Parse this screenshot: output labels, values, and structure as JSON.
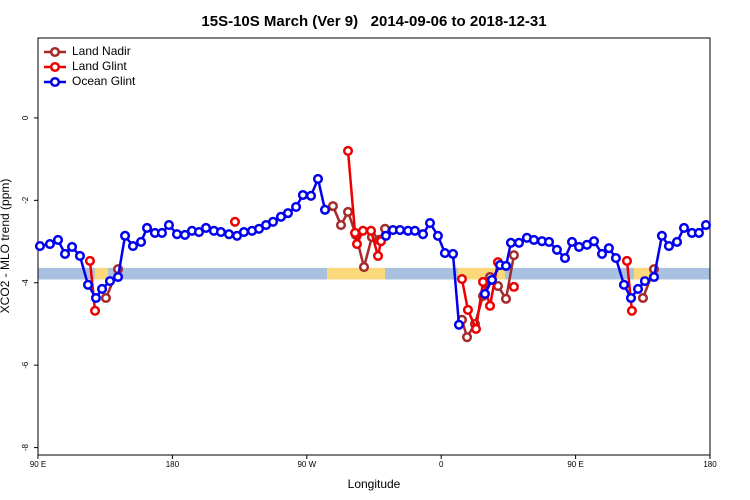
{
  "chart_data": {
    "type": "line",
    "title": "15S-10S March (Ver 9)   2014-09-06 to 2018-12-31",
    "xlabel": "Longitude",
    "ylabel": "XCO2 - MLO trend (ppm)",
    "xlim": [
      90,
      540
    ],
    "ylim": [
      -8.18,
      1.94
    ],
    "xticks": [
      {
        "value": 90,
        "label": "90 E"
      },
      180,
      {
        "value": 270,
        "label": "90 W"
      },
      {
        "value": 360,
        "label": "0"
      },
      {
        "value": 450,
        "label": "90 E"
      },
      {
        "value": 540,
        "label": "180"
      }
    ],
    "yticks": [
      0,
      -2,
      -4,
      -6,
      -8
    ],
    "legend": "top-left",
    "band": {
      "ylim": [
        -3.92,
        -3.64
      ],
      "color": "#a9c1e0"
    },
    "land_spans": {
      "color": "#fbd97a",
      "ranges": [
        [
          128,
          137
        ],
        [
          283.5,
          322.4
        ],
        [
          371.2,
          402.7
        ],
        [
          489,
          505
        ]
      ]
    },
    "series": [
      {
        "name": "Land Nadir",
        "color": "#a52a2a",
        "x": [
          135.5,
          143.6,
          null,
          287.5,
          292.9,
          297.6,
          302.9,
          308.3,
          313.6,
          318.3,
          322.4,
          null,
          373.9,
          377.3,
          382.6,
          388.0,
          392.7,
          398.0,
          403.4,
          408.7,
          null,
          495.1,
          502.5
        ],
        "values": [
          -4.37,
          -3.67,
          null,
          -2.14,
          -2.6,
          -2.28,
          -2.84,
          -3.62,
          -2.89,
          -2.96,
          -2.69,
          null,
          -4.9,
          -5.32,
          -5.0,
          -4.32,
          -3.86,
          -4.08,
          -4.39,
          -3.33,
          null,
          -4.37,
          -3.67
        ]
      },
      {
        "name": "Land Glint",
        "color": "#ee0000",
        "x": [
          124.8,
          128.2,
          null,
          221.9,
          null,
          297.6,
          302.3,
          303.6,
          307.6,
          313.0,
          317.7,
          319.7,
          null,
          373.9,
          377.9,
          383.3,
          388.0,
          392.7,
          398.0,
          null,
          408.7,
          null,
          484.4,
          487.7
        ],
        "values": [
          -3.47,
          -4.68,
          null,
          -2.52,
          null,
          -0.8,
          -2.79,
          -3.06,
          -2.74,
          -2.74,
          -3.35,
          -2.99,
          null,
          -3.91,
          -4.66,
          -5.12,
          -3.98,
          -4.56,
          -3.5,
          null,
          -4.1,
          null,
          -3.47,
          -4.68
        ]
      },
      {
        "name": "Ocean Glint",
        "color": "#0000ee",
        "x": [
          91.3,
          98.0,
          103.4,
          108.1,
          112.8,
          118.1,
          123.5,
          128.8,
          132.9,
          138.2,
          143.6,
          148.3,
          153.6,
          159.0,
          163.0,
          168.3,
          173.0,
          177.7,
          183.1,
          188.4,
          193.1,
          197.8,
          202.5,
          207.8,
          212.5,
          217.9,
          223.3,
          227.9,
          233.3,
          238.0,
          242.7,
          247.4,
          252.7,
          257.4,
          262.8,
          267.4,
          272.8,
          277.5,
          282.2,
          null,
          323.0,
          327.7,
          332.4,
          337.8,
          342.4,
          347.8,
          352.5,
          357.8,
          362.5,
          367.9,
          371.9,
          null,
          389.3,
          394.0,
          399.4,
          403.4,
          406.7,
          412.1,
          417.4,
          422.1,
          427.5,
          432.2,
          437.5,
          442.9,
          447.6,
          452.3,
          457.6,
          462.3,
          467.7,
          472.3,
          477.0,
          482.4,
          487.1,
          491.8,
          496.4,
          502.5,
          507.8,
          512.5,
          517.9,
          522.6,
          527.9,
          532.6,
          537.3
        ],
        "values": [
          -3.11,
          -3.06,
          -2.96,
          -3.3,
          -3.13,
          -3.35,
          -4.05,
          -4.37,
          -4.15,
          -3.96,
          -3.86,
          -2.86,
          -3.11,
          -3.01,
          -2.67,
          -2.79,
          -2.79,
          -2.6,
          -2.82,
          -2.84,
          -2.74,
          -2.77,
          -2.67,
          -2.74,
          -2.77,
          -2.82,
          -2.86,
          -2.77,
          -2.74,
          -2.69,
          -2.6,
          -2.52,
          -2.4,
          -2.31,
          -2.16,
          -1.87,
          -1.89,
          -1.48,
          -2.23,
          null,
          -2.86,
          -2.72,
          -2.72,
          -2.74,
          -2.74,
          -2.82,
          -2.55,
          -2.86,
          -3.28,
          -3.3,
          -5.02,
          null,
          -4.27,
          -3.93,
          -3.57,
          -3.59,
          -3.03,
          -3.03,
          -2.91,
          -2.96,
          -2.99,
          -3.01,
          -3.2,
          -3.4,
          -3.01,
          -3.13,
          -3.08,
          -2.99,
          -3.3,
          -3.16,
          -3.4,
          -4.05,
          -4.37,
          -4.15,
          -3.96,
          -3.86,
          -2.86,
          -3.11,
          -3.01,
          -2.67,
          -2.79,
          -2.79,
          -2.6
        ]
      }
    ]
  }
}
